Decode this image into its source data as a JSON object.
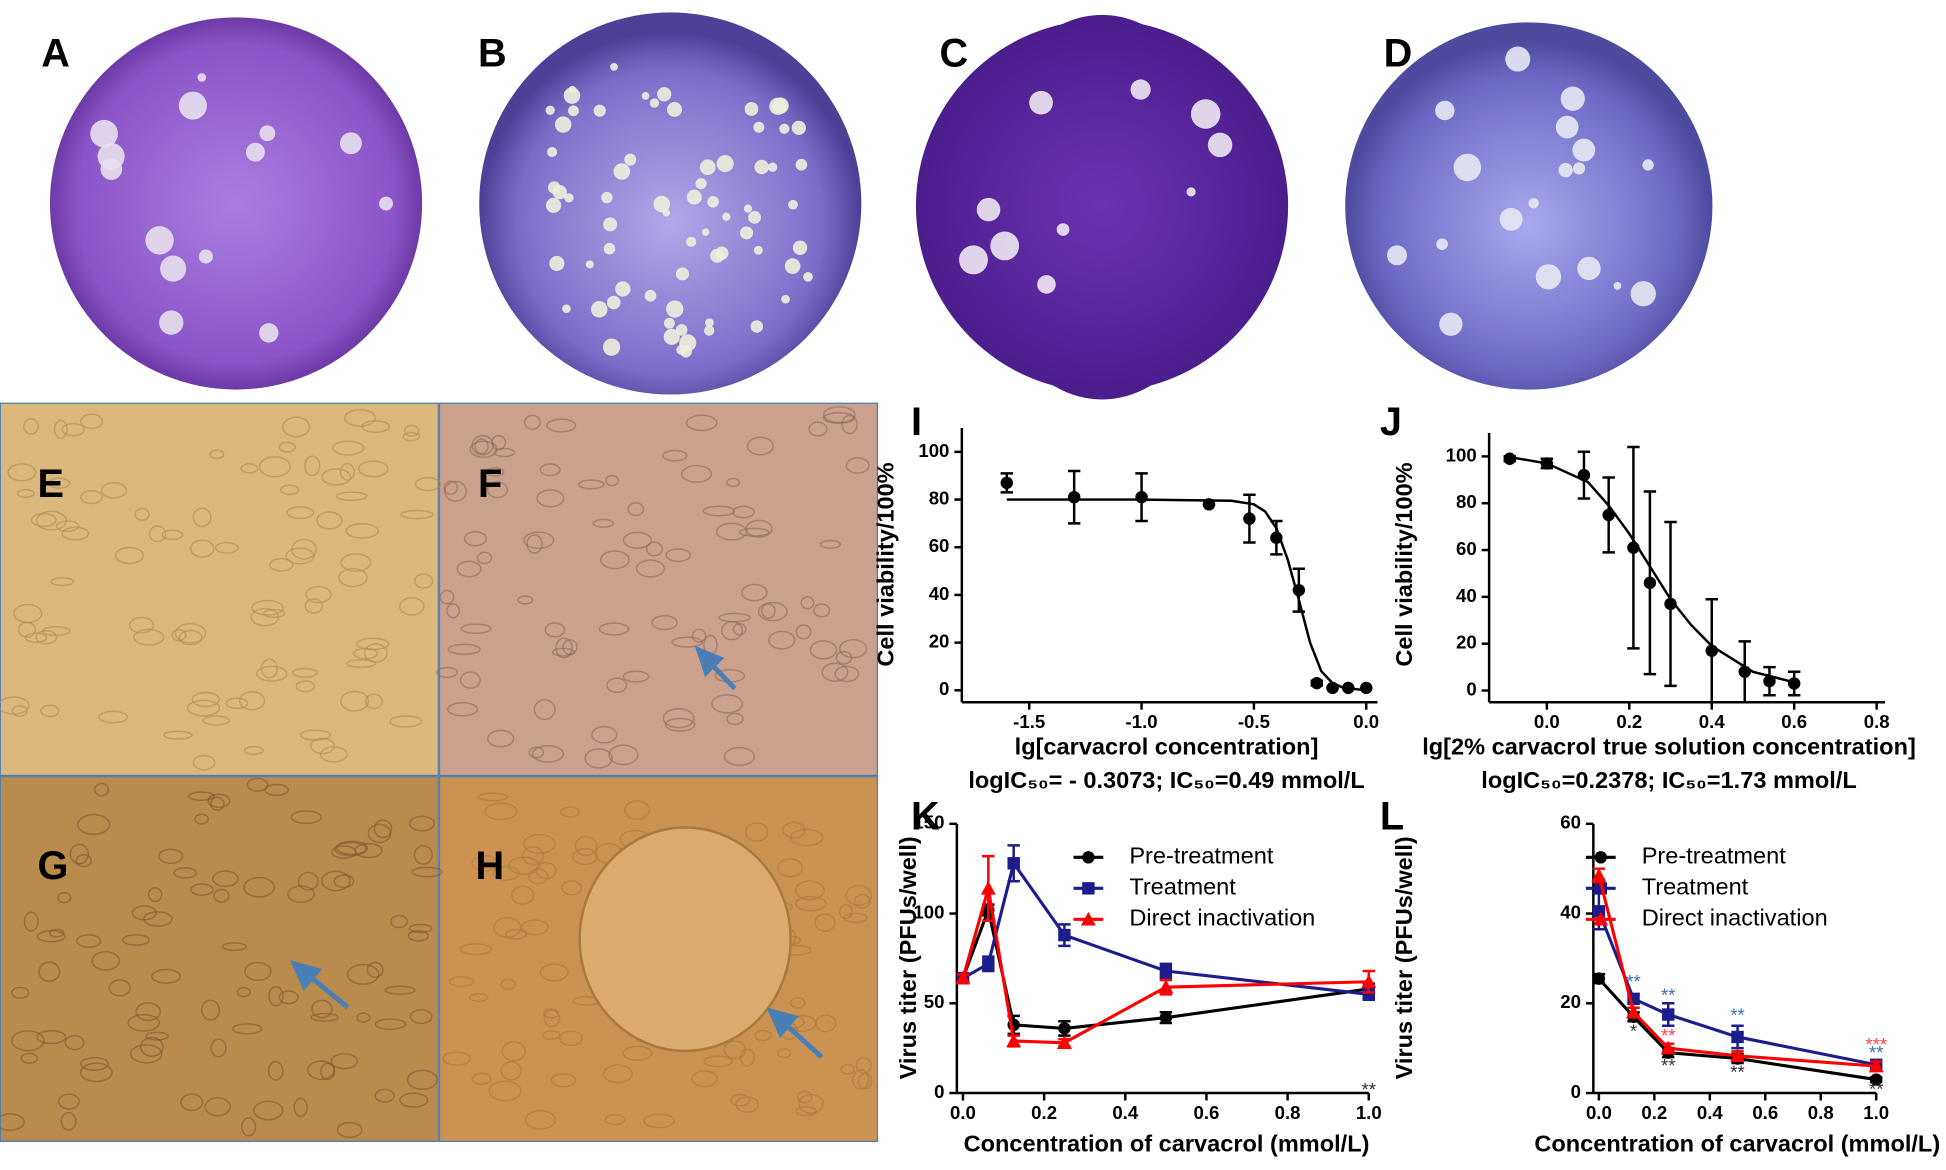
{
  "image_panels": [
    "A",
    "B",
    "C",
    "D",
    "E",
    "F",
    "G",
    "H"
  ],
  "chart_data": [
    {
      "type": "scatter",
      "panel": "I",
      "x_label": "lg[carvacrol concentration]",
      "y_label": "Cell viability/100%",
      "note": "logIC₅₀= - 0.3073; IC₅₀=0.49 mmol/L",
      "xlim": [
        -1.8,
        0.05
      ],
      "ylim": [
        -5,
        110
      ],
      "xticks": [
        {
          "value": -1.5,
          "label": "-1.5"
        },
        {
          "value": -1.0,
          "label": "-1.0"
        },
        {
          "value": -0.5,
          "label": "-0.5"
        },
        {
          "value": 0.0,
          "label": "0.0"
        }
      ],
      "yticks": [
        0,
        20,
        40,
        60,
        80,
        100
      ],
      "series": [
        {
          "color": "#000000",
          "marker": "circle",
          "x": [
            -1.6,
            -1.3,
            -1.0,
            -0.7,
            -0.52,
            -0.4,
            -0.3,
            -0.22,
            -0.15,
            -0.08,
            0.0
          ],
          "values": [
            87,
            81,
            81,
            78,
            72,
            64,
            42,
            3,
            1,
            1,
            1
          ],
          "errors": [
            4,
            11,
            10,
            0,
            10,
            7,
            9,
            1,
            0,
            0,
            0
          ]
        }
      ],
      "fit": {
        "color": "#000000",
        "x": [
          -1.6,
          -1.0,
          -0.6,
          -0.5,
          -0.45,
          -0.4,
          -0.35,
          -0.3,
          -0.25,
          -0.2,
          -0.15,
          -0.1,
          0.0
        ],
        "values": [
          80,
          80,
          79.5,
          78,
          75,
          68,
          55,
          38,
          20,
          8,
          3,
          1,
          0
        ]
      }
    },
    {
      "type": "scatter",
      "panel": "J",
      "x_label": "lg[2% carvacrol true solution concentration]",
      "y_label": "Cell viability/100%",
      "note": "logIC₅₀=0.2378; IC₅₀=1.73 mmol/L",
      "xlim": [
        -0.14,
        0.82
      ],
      "ylim": [
        -5,
        110
      ],
      "xticks": [
        {
          "value": 0.0,
          "label": "0.0"
        },
        {
          "value": 0.2,
          "label": "0.2"
        },
        {
          "value": 0.4,
          "label": "0.4"
        },
        {
          "value": 0.6,
          "label": "0.6"
        },
        {
          "value": 0.8,
          "label": "0.8"
        }
      ],
      "yticks": [
        0,
        20,
        40,
        60,
        80,
        100
      ],
      "series": [
        {
          "color": "#000000",
          "marker": "circle",
          "x": [
            -0.09,
            0.0,
            0.09,
            0.15,
            0.21,
            0.25,
            0.3,
            0.4,
            0.48,
            0.54,
            0.6
          ],
          "values": [
            99,
            97,
            92,
            75,
            61,
            46,
            37,
            17,
            8,
            4,
            3
          ],
          "errors": [
            1,
            2,
            10,
            16,
            43,
            39,
            35,
            22,
            13,
            6,
            5
          ]
        }
      ],
      "fit": {
        "color": "#000000",
        "x": [
          -0.1,
          0.0,
          0.1,
          0.15,
          0.2,
          0.25,
          0.3,
          0.35,
          0.4,
          0.5,
          0.6
        ],
        "values": [
          100,
          97,
          89,
          79,
          67,
          53,
          39,
          28,
          19,
          8,
          3.5
        ]
      }
    },
    {
      "type": "line",
      "panel": "K",
      "x_label": "Concentration of carvacrol (mmol/L)",
      "y_label": "Virus titer (PFUs/well)",
      "xlim": [
        -0.015,
        1.0
      ],
      "ylim": [
        0,
        150
      ],
      "xticks": [
        {
          "value": 0.0,
          "label": "0.0"
        },
        {
          "value": 0.2,
          "label": "0.2"
        },
        {
          "value": 0.4,
          "label": "0.4"
        },
        {
          "value": 0.6,
          "label": "0.6"
        },
        {
          "value": 0.8,
          "label": "0.8"
        },
        {
          "value": 1.0,
          "label": "1.0"
        }
      ],
      "yticks": [
        0,
        50,
        100,
        150
      ],
      "x": [
        0,
        0.0625,
        0.125,
        0.25,
        0.5,
        1.0
      ],
      "series": [
        {
          "name": "Pre-treatment",
          "color": "#000000",
          "marker": "circle",
          "values": [
            64,
            102,
            38,
            36,
            42,
            58
          ],
          "errors": [
            2,
            3,
            5,
            4,
            3,
            3
          ]
        },
        {
          "name": "Treatment",
          "color": "#1c1c8c",
          "marker": "square",
          "values": [
            64,
            72,
            128,
            88,
            68,
            55
          ],
          "errors": [
            2,
            4,
            10,
            6,
            4,
            3
          ]
        },
        {
          "name": "Direct inactivation",
          "color": "#ff0000",
          "marker": "triangle",
          "values": [
            64,
            114,
            29,
            28,
            59,
            62
          ],
          "errors": [
            2,
            18,
            3,
            2,
            4,
            6
          ]
        }
      ],
      "annotations": [
        {
          "text": "**",
          "x": 1.0,
          "y": 1,
          "color": "#333333"
        }
      ]
    },
    {
      "type": "line",
      "panel": "L",
      "x_label": "Concentration of carvacrol (mmol/L)",
      "y_label": "Virus titer (PFUs/well)",
      "xlim": [
        -0.02,
        1.0
      ],
      "ylim": [
        0,
        60
      ],
      "xticks": [
        {
          "value": 0.0,
          "label": "0.0"
        },
        {
          "value": 0.2,
          "label": "0.2"
        },
        {
          "value": 0.4,
          "label": "0.4"
        },
        {
          "value": 0.6,
          "label": "0.6"
        },
        {
          "value": 0.8,
          "label": "0.8"
        },
        {
          "value": 1.0,
          "label": "1.0"
        }
      ],
      "yticks": [
        0,
        20,
        40,
        60
      ],
      "x": [
        0,
        0.125,
        0.25,
        0.5,
        1.0
      ],
      "series": [
        {
          "name": "Pre-treatment",
          "color": "#000000",
          "marker": "circle",
          "values": [
            25.5,
            17,
            9,
            7.7,
            3
          ],
          "errors": [
            1,
            1,
            1,
            1,
            0.5
          ]
        },
        {
          "name": "Treatment",
          "color": "#1c1c8c",
          "marker": "square",
          "values": [
            40.5,
            21,
            17.5,
            12.5,
            6.3
          ],
          "errors": [
            4,
            1,
            2.5,
            2.5,
            1
          ]
        },
        {
          "name": "Direct inactivation",
          "color": "#ff0000",
          "marker": "triangle",
          "values": [
            48.5,
            18,
            10,
            8.3,
            6
          ],
          "errors": [
            1.5,
            1,
            1,
            1,
            1
          ]
        }
      ],
      "annotations": [
        {
          "text": "**",
          "x": 0.125,
          "y": 24.5,
          "color": "#3a6fb0"
        },
        {
          "text": "*",
          "x": 0.125,
          "y": 13.5,
          "color": "#333333"
        },
        {
          "text": "**",
          "x": 0.25,
          "y": 21.5,
          "color": "#3a6fb0"
        },
        {
          "text": "**",
          "x": 0.25,
          "y": 12.5,
          "color": "#ff4444"
        },
        {
          "text": "**",
          "x": 0.25,
          "y": 5.8,
          "color": "#333333"
        },
        {
          "text": "**",
          "x": 0.5,
          "y": 17,
          "color": "#3a6fb0"
        },
        {
          "text": "**",
          "x": 0.5,
          "y": 4.3,
          "color": "#333333"
        },
        {
          "text": "***",
          "x": 1.0,
          "y": 10.5,
          "color": "#ff4444"
        },
        {
          "text": "**",
          "x": 1.0,
          "y": 8.7,
          "color": "#3a6fb0"
        },
        {
          "text": "**",
          "x": 1.0,
          "y": 0.5,
          "color": "#333333"
        }
      ]
    }
  ]
}
